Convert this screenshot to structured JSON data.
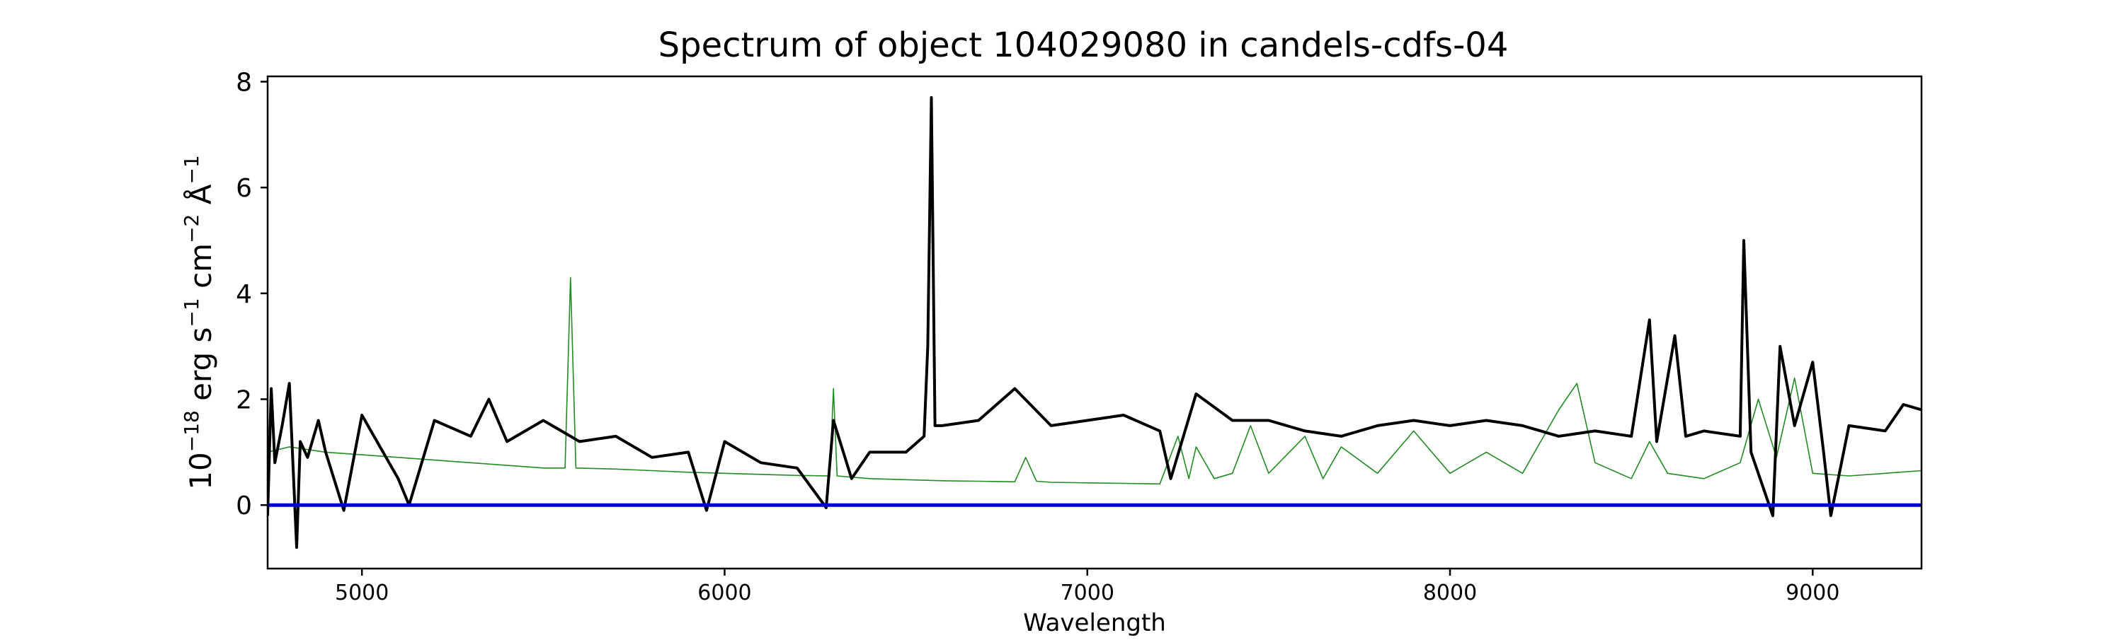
{
  "chart_data": {
    "type": "line",
    "title": "Spectrum of object 104029080 in candels-cdfs-04",
    "xlabel": "Wavelength",
    "ylabel": {
      "base": "10",
      "exp": "−18",
      "unit1": " erg s",
      "unit1_exp": "−1",
      "unit2": " cm",
      "unit2_exp": "−2",
      "unit3": " Å",
      "unit3_exp": "−1"
    },
    "xlim": [
      4740,
      9300
    ],
    "ylim": [
      -1.2,
      8.1
    ],
    "x_ticks": [
      5000,
      6000,
      7000,
      8000,
      9000
    ],
    "x_tick_labels": [
      "5000",
      "6000",
      "7000",
      "8000",
      "9000"
    ],
    "y_ticks": [
      0,
      2,
      4,
      6,
      8
    ],
    "y_tick_labels": [
      "0",
      "2",
      "4",
      "6",
      "8"
    ],
    "grid": false,
    "series": [
      {
        "role": "error",
        "color": "#228b22",
        "points": [
          [
            4740,
            1.0
          ],
          [
            4800,
            1.1
          ],
          [
            4900,
            1.0
          ],
          [
            5000,
            0.95
          ],
          [
            5100,
            0.9
          ],
          [
            5200,
            0.85
          ],
          [
            5300,
            0.8
          ],
          [
            5400,
            0.75
          ],
          [
            5500,
            0.7
          ],
          [
            5560,
            0.7
          ],
          [
            5575,
            4.3
          ],
          [
            5590,
            0.7
          ],
          [
            5700,
            0.68
          ],
          [
            5800,
            0.65
          ],
          [
            5900,
            0.62
          ],
          [
            6000,
            0.6
          ],
          [
            6100,
            0.58
          ],
          [
            6200,
            0.56
          ],
          [
            6290,
            0.55
          ],
          [
            6300,
            2.2
          ],
          [
            6310,
            0.55
          ],
          [
            6400,
            0.5
          ],
          [
            6500,
            0.48
          ],
          [
            6600,
            0.46
          ],
          [
            6700,
            0.45
          ],
          [
            6800,
            0.44
          ],
          [
            6830,
            0.9
          ],
          [
            6860,
            0.45
          ],
          [
            6900,
            0.43
          ],
          [
            7000,
            0.42
          ],
          [
            7100,
            0.41
          ],
          [
            7200,
            0.4
          ],
          [
            7250,
            1.3
          ],
          [
            7280,
            0.5
          ],
          [
            7300,
            1.1
          ],
          [
            7350,
            0.5
          ],
          [
            7400,
            0.6
          ],
          [
            7450,
            1.5
          ],
          [
            7500,
            0.6
          ],
          [
            7600,
            1.3
          ],
          [
            7650,
            0.5
          ],
          [
            7700,
            1.1
          ],
          [
            7800,
            0.6
          ],
          [
            7900,
            1.4
          ],
          [
            8000,
            0.6
          ],
          [
            8100,
            1.0
          ],
          [
            8200,
            0.6
          ],
          [
            8300,
            1.8
          ],
          [
            8350,
            2.3
          ],
          [
            8400,
            0.8
          ],
          [
            8500,
            0.5
          ],
          [
            8550,
            1.2
          ],
          [
            8600,
            0.6
          ],
          [
            8700,
            0.5
          ],
          [
            8800,
            0.8
          ],
          [
            8850,
            2.0
          ],
          [
            8900,
            0.9
          ],
          [
            8950,
            2.4
          ],
          [
            9000,
            0.6
          ],
          [
            9100,
            0.55
          ],
          [
            9200,
            0.6
          ],
          [
            9300,
            0.65
          ]
        ]
      },
      {
        "role": "flux",
        "color": "#000000",
        "points": [
          [
            4740,
            -0.2
          ],
          [
            4750,
            2.2
          ],
          [
            4760,
            0.8
          ],
          [
            4780,
            1.5
          ],
          [
            4800,
            2.3
          ],
          [
            4820,
            -0.8
          ],
          [
            4830,
            1.2
          ],
          [
            4850,
            0.9
          ],
          [
            4880,
            1.6
          ],
          [
            4900,
            1.0
          ],
          [
            4950,
            -0.1
          ],
          [
            5000,
            1.7
          ],
          [
            5100,
            0.5
          ],
          [
            5130,
            0.0
          ],
          [
            5200,
            1.6
          ],
          [
            5300,
            1.3
          ],
          [
            5350,
            2.0
          ],
          [
            5400,
            1.2
          ],
          [
            5500,
            1.6
          ],
          [
            5600,
            1.2
          ],
          [
            5700,
            1.3
          ],
          [
            5800,
            0.9
          ],
          [
            5900,
            1.0
          ],
          [
            5950,
            -0.1
          ],
          [
            6000,
            1.2
          ],
          [
            6100,
            0.8
          ],
          [
            6200,
            0.7
          ],
          [
            6280,
            -0.05
          ],
          [
            6300,
            1.6
          ],
          [
            6350,
            0.5
          ],
          [
            6400,
            1.0
          ],
          [
            6500,
            1.0
          ],
          [
            6550,
            1.3
          ],
          [
            6560,
            3.0
          ],
          [
            6570,
            7.7
          ],
          [
            6580,
            1.5
          ],
          [
            6600,
            1.5
          ],
          [
            6700,
            1.6
          ],
          [
            6800,
            2.2
          ],
          [
            6900,
            1.5
          ],
          [
            7000,
            1.6
          ],
          [
            7100,
            1.7
          ],
          [
            7200,
            1.4
          ],
          [
            7230,
            0.5
          ],
          [
            7300,
            2.1
          ],
          [
            7400,
            1.6
          ],
          [
            7500,
            1.6
          ],
          [
            7600,
            1.4
          ],
          [
            7700,
            1.3
          ],
          [
            7800,
            1.5
          ],
          [
            7900,
            1.6
          ],
          [
            8000,
            1.5
          ],
          [
            8100,
            1.6
          ],
          [
            8200,
            1.5
          ],
          [
            8300,
            1.3
          ],
          [
            8400,
            1.4
          ],
          [
            8500,
            1.3
          ],
          [
            8550,
            3.5
          ],
          [
            8570,
            1.2
          ],
          [
            8620,
            3.2
          ],
          [
            8650,
            1.3
          ],
          [
            8700,
            1.4
          ],
          [
            8800,
            1.3
          ],
          [
            8810,
            5.0
          ],
          [
            8830,
            1.0
          ],
          [
            8890,
            -0.2
          ],
          [
            8910,
            3.0
          ],
          [
            8950,
            1.5
          ],
          [
            9000,
            2.7
          ],
          [
            9030,
            1.0
          ],
          [
            9050,
            -0.2
          ],
          [
            9100,
            1.5
          ],
          [
            9200,
            1.4
          ],
          [
            9250,
            1.9
          ],
          [
            9300,
            1.8
          ]
        ]
      },
      {
        "role": "zero",
        "color": "#0000cd",
        "points": [
          [
            4740,
            0
          ],
          [
            9300,
            0
          ]
        ]
      }
    ]
  }
}
